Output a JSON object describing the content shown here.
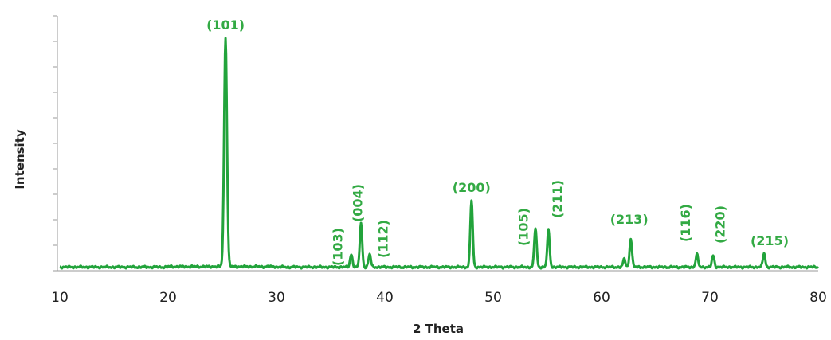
{
  "chart_data": {
    "type": "line",
    "title": "",
    "xlabel": "2 Theta",
    "ylabel": "Intensity",
    "xlim": [
      10,
      80
    ],
    "ylim": [
      0,
      100
    ],
    "x_ticks": [
      10,
      20,
      30,
      40,
      50,
      60,
      70,
      80
    ],
    "y_ticks_shown_without_labels": true,
    "grid": false,
    "line_color": "#22a33b",
    "label_color": "#33aa44",
    "series": [
      {
        "peaks": [
          {
            "two_theta": 25.3,
            "intensity": 100,
            "label": "(101)"
          },
          {
            "two_theta": 36.9,
            "intensity": 5.6,
            "label": "(103)"
          },
          {
            "two_theta": 37.8,
            "intensity": 19,
            "label": "(004)"
          },
          {
            "two_theta": 38.6,
            "intensity": 5.5,
            "label": "(112)"
          },
          {
            "two_theta": 48.0,
            "intensity": 29,
            "label": "(200)"
          },
          {
            "two_theta": 53.9,
            "intensity": 17,
            "label": "(105)"
          },
          {
            "two_theta": 55.1,
            "intensity": 16,
            "label": "(211)"
          },
          {
            "two_theta": 62.1,
            "intensity": 3.5,
            "label": ""
          },
          {
            "two_theta": 62.7,
            "intensity": 12.5,
            "label": "(213)"
          },
          {
            "two_theta": 68.8,
            "intensity": 5.5,
            "label": "(116)"
          },
          {
            "two_theta": 70.3,
            "intensity": 5,
            "label": "(220)"
          },
          {
            "two_theta": 75.0,
            "intensity": 6,
            "label": "(215)"
          }
        ]
      }
    ]
  }
}
